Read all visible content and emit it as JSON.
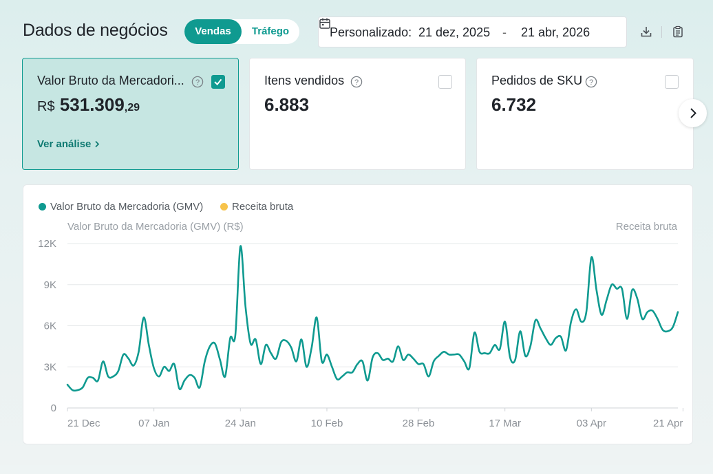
{
  "header": {
    "title": "Dados de negócios",
    "tabs": [
      {
        "label": "Vendas",
        "active": true
      },
      {
        "label": "Tráfego",
        "active": false
      }
    ],
    "date_range": {
      "label": "Personalizado:",
      "start": "21 dez, 2025",
      "separator": "-",
      "end": "21 abr, 2026"
    },
    "tools": [
      "download-icon",
      "clipboard-icon"
    ]
  },
  "cards": [
    {
      "title": "Valor Bruto da Mercadori...",
      "currency": "R$",
      "value": "531.309",
      "cents": ",29",
      "link": "Ver análise",
      "checked": true
    },
    {
      "title": "Itens vendidos",
      "value": "6.883",
      "checked": false
    },
    {
      "title": "Pedidos de SKU",
      "value": "6.732",
      "checked": false
    }
  ],
  "chart": {
    "legend": [
      {
        "label": "Valor Bruto da Mercadoria (GMV)",
        "color": "#0f9a90"
      },
      {
        "label": "Receita bruta",
        "color": "#f7c34b"
      }
    ],
    "left_axis_title": "Valor Bruto da Mercadoria (GMV) (R$)",
    "right_axis_title": "Receita bruta"
  },
  "chart_data": {
    "type": "line",
    "ylim": [
      0,
      12000
    ],
    "y_ticks": [
      0,
      3000,
      6000,
      9000,
      12000
    ],
    "y_tick_labels": [
      "0",
      "3K",
      "6K",
      "9K",
      "12K"
    ],
    "x_tick_labels": [
      "21 Dec",
      "07 Jan",
      "24 Jan",
      "10 Feb",
      "28 Feb",
      "17 Mar",
      "03 Apr",
      "21 Apr"
    ],
    "x_tick_index": [
      0,
      17,
      34,
      51,
      69,
      86,
      103,
      121
    ],
    "series": [
      {
        "name": "Valor Bruto da Mercadoria (GMV)",
        "color": "#0f9a90",
        "values": [
          1700,
          1300,
          1300,
          1500,
          2200,
          2200,
          2000,
          3400,
          2300,
          2300,
          2700,
          3900,
          3600,
          3100,
          4100,
          6600,
          4600,
          2900,
          2300,
          3000,
          2700,
          3200,
          1400,
          2000,
          2400,
          2200,
          1500,
          3400,
          4500,
          4700,
          3500,
          2300,
          5100,
          5300,
          11800,
          7400,
          4700,
          5000,
          3200,
          4600,
          4000,
          3600,
          4800,
          4900,
          4400,
          3400,
          5000,
          3000,
          4400,
          6600,
          3400,
          3900,
          3000,
          2100,
          2300,
          2600,
          2600,
          3200,
          3400,
          2000,
          3700,
          4000,
          3500,
          3600,
          3400,
          4500,
          3500,
          3900,
          3600,
          3200,
          3200,
          2300,
          3400,
          3800,
          4100,
          3900,
          3900,
          3900,
          3400,
          2900,
          5500,
          4100,
          4000,
          4000,
          4600,
          4300,
          6300,
          3700,
          3500,
          5600,
          3800,
          4500,
          6400,
          5800,
          5100,
          4600,
          5100,
          5200,
          4200,
          6300,
          7200,
          6300,
          7000,
          11000,
          8600,
          6800,
          7900,
          9000,
          8700,
          8700,
          6500,
          8600,
          8000,
          6500,
          7000,
          7100,
          6500,
          5700,
          5600,
          5900,
          7000
        ]
      }
    ]
  }
}
